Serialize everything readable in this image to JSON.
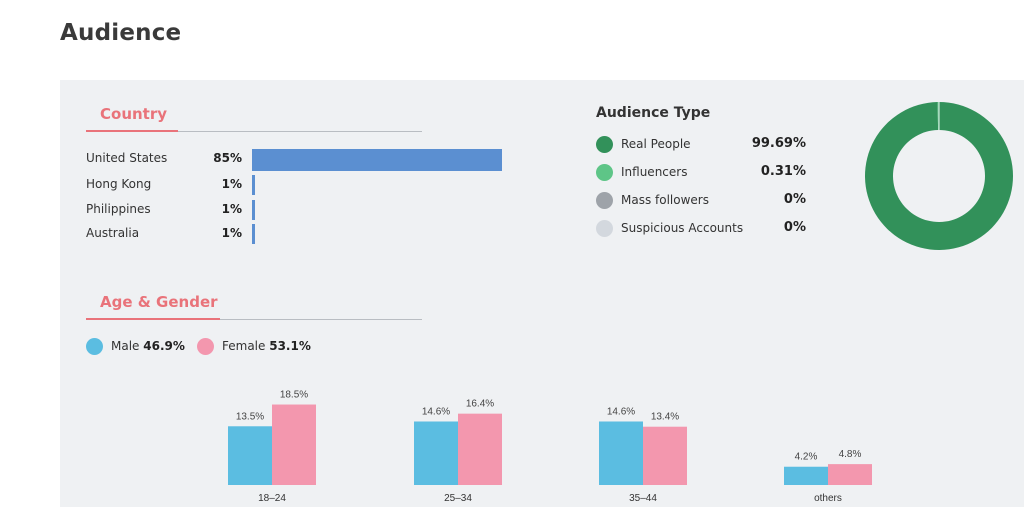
{
  "page": {
    "title": "Audience"
  },
  "country": {
    "title": "Country",
    "rows": [
      {
        "name": "United States",
        "pct_label": "85%",
        "value": 85
      },
      {
        "name": "Hong Kong",
        "pct_label": "1%",
        "value": 1
      },
      {
        "name": "Philippines",
        "pct_label": "1%",
        "value": 1
      },
      {
        "name": "Australia",
        "pct_label": "1%",
        "value": 1
      }
    ],
    "bar_color": "#5b8fd1"
  },
  "audience_type": {
    "title": "Audience Type",
    "items": [
      {
        "label": "Real People",
        "value_label": "99.69%",
        "value": 99.69,
        "color": "#32915a"
      },
      {
        "label": "Influencers",
        "value_label": "0.31%",
        "value": 0.31,
        "color": "#5ec587"
      },
      {
        "label": "Mass followers",
        "value_label": "0%",
        "value": 0,
        "color": "#9ea3a9"
      },
      {
        "label": "Suspicious Accounts",
        "value_label": "0%",
        "value": 0,
        "color": "#d3d8de"
      }
    ]
  },
  "age_gender": {
    "title": "Age & Gender",
    "legend": [
      {
        "label": "Male",
        "value": "46.9%",
        "color": "#5bbde1"
      },
      {
        "label": "Female",
        "value": "53.1%",
        "color": "#f397ae"
      }
    ]
  },
  "chart_data": [
    {
      "type": "bar",
      "title": "Country",
      "orientation": "horizontal",
      "categories": [
        "United States",
        "Hong Kong",
        "Philippines",
        "Australia"
      ],
      "values": [
        85,
        1,
        1,
        1
      ],
      "data_labels": [
        "85%",
        "1%",
        "1%",
        "1%"
      ],
      "xlim": [
        0,
        100
      ]
    },
    {
      "type": "pie",
      "title": "Audience Type",
      "categories": [
        "Real People",
        "Influencers",
        "Mass followers",
        "Suspicious Accounts"
      ],
      "values": [
        99.69,
        0.31,
        0,
        0
      ],
      "colors": [
        "#32915a",
        "#5ec587",
        "#9ea3a9",
        "#d3d8de"
      ],
      "donut": true
    },
    {
      "type": "bar",
      "title": "Age & Gender",
      "categories": [
        "18–24",
        "25–34",
        "35–44",
        "others"
      ],
      "series": [
        {
          "name": "Male",
          "values": [
            13.5,
            14.6,
            14.6,
            4.2
          ],
          "labels": [
            "13.5%",
            "14.6%",
            "14.6%",
            "4.2%"
          ],
          "color": "#5bbde1"
        },
        {
          "name": "Female",
          "values": [
            18.5,
            16.4,
            13.4,
            4.8
          ],
          "labels": [
            "18.5%",
            "16.4%",
            "13.4%",
            "4.8%"
          ],
          "color": "#f397ae"
        }
      ],
      "ylim": [
        0,
        20
      ],
      "legend": "top-left"
    }
  ]
}
